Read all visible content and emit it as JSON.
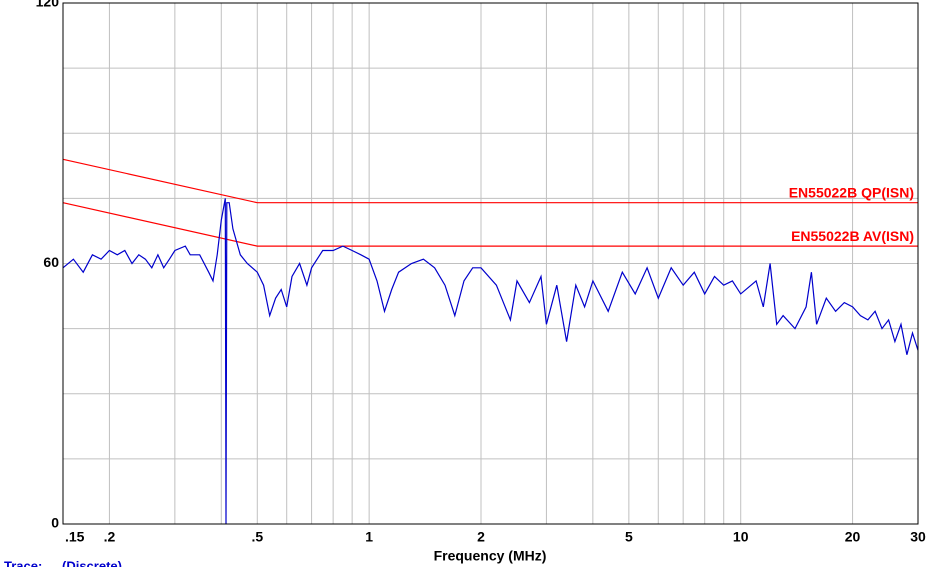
{
  "chart_data": {
    "type": "line",
    "x_label": "Frequency (MHz)",
    "xscale": "log",
    "xlim": [
      0.15,
      30
    ],
    "xticks": [
      {
        "value": 0.15,
        "label": ".15"
      },
      {
        "value": 0.2,
        "label": ".2"
      },
      {
        "value": 0.5,
        "label": ".5"
      },
      1,
      2,
      5,
      10,
      20,
      30
    ],
    "xgrid": [
      0.2,
      0.3,
      0.4,
      0.5,
      0.6,
      0.7,
      0.8,
      0.9,
      1,
      2,
      3,
      4,
      5,
      6,
      7,
      8,
      9,
      10,
      20,
      30
    ],
    "ylim": [
      0,
      120
    ],
    "yticks": [
      0,
      60,
      120
    ],
    "ygrid": [
      15,
      30,
      45,
      60,
      75,
      90,
      105
    ],
    "grid": true,
    "trace_mode": "(Discrete)",
    "series": [
      {
        "name": "Trace:",
        "color": "#0000cc",
        "x": [
          0.15,
          0.16,
          0.17,
          0.18,
          0.19,
          0.2,
          0.21,
          0.22,
          0.23,
          0.24,
          0.25,
          0.26,
          0.27,
          0.28,
          0.29,
          0.3,
          0.32,
          0.33,
          0.35,
          0.37,
          0.38,
          0.39,
          0.4,
          0.41,
          0.412,
          0.414,
          0.42,
          0.43,
          0.45,
          0.47,
          0.5,
          0.52,
          0.54,
          0.56,
          0.58,
          0.6,
          0.62,
          0.65,
          0.68,
          0.7,
          0.75,
          0.8,
          0.85,
          0.9,
          0.95,
          1,
          1.05,
          1.1,
          1.15,
          1.2,
          1.3,
          1.4,
          1.5,
          1.6,
          1.7,
          1.8,
          1.9,
          2,
          2.2,
          2.4,
          2.5,
          2.7,
          2.9,
          3,
          3.2,
          3.4,
          3.6,
          3.8,
          4,
          4.4,
          4.8,
          5.2,
          5.6,
          6,
          6.5,
          7,
          7.5,
          8,
          8.5,
          9,
          9.5,
          10,
          11,
          11.5,
          12,
          12.5,
          13,
          14,
          15,
          15.5,
          16,
          17,
          18,
          19,
          20,
          21,
          22,
          23,
          24,
          25,
          26,
          27,
          28,
          29,
          30
        ],
        "values": [
          59,
          61,
          58,
          62,
          61,
          63,
          62,
          63,
          60,
          62,
          61,
          59,
          62,
          59,
          61,
          63,
          64,
          62,
          62,
          58,
          56,
          62,
          70,
          75,
          0,
          74,
          74,
          68,
          62,
          60,
          58,
          55,
          48,
          52,
          54,
          50,
          57,
          60,
          55,
          59,
          63,
          63,
          64,
          63,
          62,
          61,
          56,
          49,
          54,
          58,
          60,
          61,
          59,
          55,
          48,
          56,
          59,
          59,
          55,
          47,
          56,
          51,
          57,
          46,
          55,
          42,
          55,
          50,
          56,
          49,
          58,
          53,
          59,
          52,
          59,
          55,
          58,
          53,
          57,
          55,
          56,
          53,
          56,
          50,
          60,
          46,
          48,
          45,
          50,
          58,
          46,
          52,
          49,
          51,
          50,
          48,
          47,
          49,
          45,
          47,
          42,
          46,
          39,
          44,
          40
        ]
      },
      {
        "name": "EN55022B QP(ISN)",
        "color": "#ff0000",
        "x": [
          0.15,
          0.5,
          30
        ],
        "values": [
          84,
          74,
          74
        ]
      },
      {
        "name": "EN55022B AV(ISN)",
        "color": "#ff0000",
        "x": [
          0.15,
          0.5,
          30
        ],
        "values": [
          74,
          64,
          64
        ]
      }
    ]
  }
}
